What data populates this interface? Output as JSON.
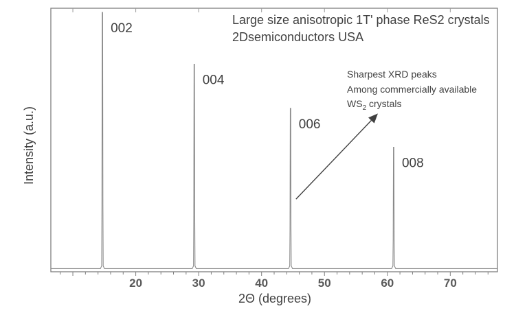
{
  "chart_data": {
    "type": "line",
    "title_lines": [
      "Large size anisotropic 1T' phase ReS2 crystals",
      "2Dsemiconductors USA"
    ],
    "xlabel": "2Θ (degrees)",
    "ylabel": "Intensity (a.u.)",
    "xlim": [
      6.5,
      77.5
    ],
    "ylim": [
      0,
      100
    ],
    "xticks": [
      20,
      30,
      40,
      50,
      60,
      70
    ],
    "grid": false,
    "peaks": [
      {
        "label": "002",
        "x": 14.7,
        "y": 100
      },
      {
        "label": "004",
        "x": 29.3,
        "y": 80
      },
      {
        "label": "006",
        "x": 44.6,
        "y": 63
      },
      {
        "label": "008",
        "x": 61.0,
        "y": 48
      }
    ],
    "annotation": {
      "lines": [
        "Sharpest XRD peaks",
        "Among commercially available"
      ],
      "formula": {
        "base": "WS",
        "sub": "2",
        "tail": " crystals"
      },
      "arrow_from": {
        "x": 44.6,
        "y": 28
      },
      "arrow_to": {
        "x": 60.9,
        "y": 61
      }
    }
  }
}
